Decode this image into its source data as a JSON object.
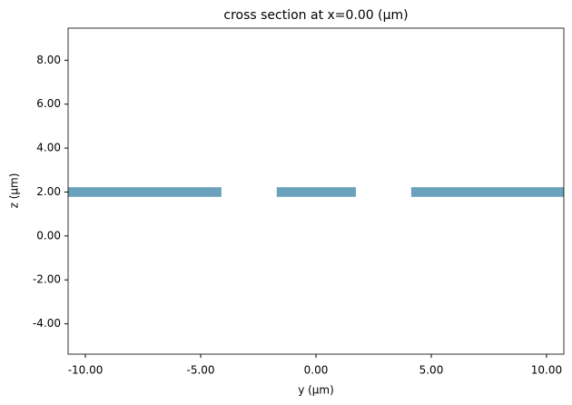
{
  "chart_data": {
    "type": "structure",
    "title": "cross section at x=0.00 (μm)",
    "x_label": "y (μm)",
    "y_label": "z (μm)",
    "color": "#6aa1bd",
    "rects": [
      {
        "x": [
          -10.75,
          -4.1
        ],
        "y": [
          1.78,
          2.22
        ]
      },
      {
        "x": [
          -1.7,
          1.73
        ],
        "y": [
          1.78,
          2.22
        ]
      },
      {
        "x": [
          4.13,
          10.75
        ],
        "y": [
          1.78,
          2.22
        ]
      }
    ],
    "xlim": [
      -10.75,
      10.75
    ],
    "xticks": [
      {
        "value": -10,
        "label": "-10.00"
      },
      {
        "value": -5,
        "label": "-5.00"
      },
      {
        "value": 0,
        "label": "0.00"
      },
      {
        "value": 5,
        "label": "5.00"
      },
      {
        "value": 10,
        "label": "10.00"
      }
    ],
    "ylim": [
      -5.38,
      9.46
    ],
    "yticks": [
      {
        "value": -4,
        "label": "-4.00"
      },
      {
        "value": -2,
        "label": "-2.00"
      },
      {
        "value": 0,
        "label": "0.00"
      },
      {
        "value": 2,
        "label": "2.00"
      },
      {
        "value": 4,
        "label": "4.00"
      },
      {
        "value": 6,
        "label": "6.00"
      },
      {
        "value": 8,
        "label": "8.00"
      }
    ]
  }
}
